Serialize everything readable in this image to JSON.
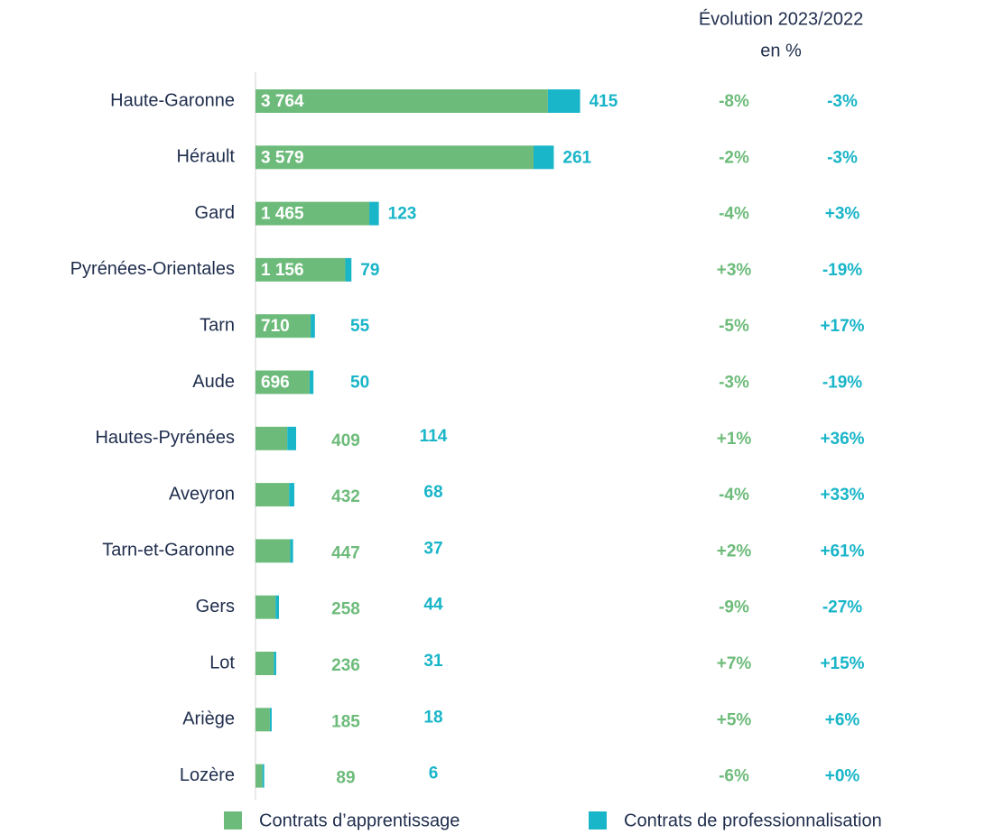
{
  "chart_data": {
    "type": "stacked-bar-horizontal",
    "categories": [
      "Haute-Garonne",
      "Hérault",
      "Gard",
      "Pyrénées-Orientales",
      "Tarn",
      "Aude",
      "Hautes-Pyrénées",
      "Aveyron",
      "Tarn-et-Garonne",
      "Gers",
      "Lot",
      "Ariège",
      "Lozère"
    ],
    "xlim": [
      0,
      4800
    ],
    "series": [
      {
        "name": "Contrats d’apprentissage",
        "color": "#6dbb7a",
        "values": [
          3764,
          3579,
          1465,
          1156,
          710,
          696,
          409,
          432,
          447,
          258,
          236,
          185,
          89
        ],
        "value_labels": [
          "3 764",
          "3 579",
          "1 465",
          "1 156",
          "710",
          "696",
          "409",
          "432",
          "447",
          "258",
          "236",
          "185",
          "89"
        ]
      },
      {
        "name": "Contrats de professionnalisation",
        "color": "#19b5c8",
        "values": [
          415,
          261,
          123,
          79,
          55,
          50,
          114,
          68,
          37,
          44,
          31,
          18,
          6
        ]
      }
    ],
    "evolution": {
      "title": "Évolution 2023/2022",
      "subtitle": "en %",
      "series": [
        {
          "color": "#6dbb7a",
          "values": [
            -8,
            -2,
            -4,
            3,
            -5,
            -3,
            1,
            -4,
            2,
            -9,
            7,
            5,
            -6
          ],
          "value_labels": [
            "-8%",
            "-2%",
            "-4%",
            "+3%",
            "-5%",
            "-3%",
            "+1%",
            "-4%",
            "+2%",
            "-9%",
            "+7%",
            "+5%",
            "-6%"
          ]
        },
        {
          "color": "#19b5c8",
          "values": [
            -3,
            -3,
            3,
            -19,
            17,
            -19,
            36,
            33,
            61,
            -27,
            15,
            6,
            0
          ],
          "value_labels": [
            "-3%",
            "-3%",
            "+3%",
            "-19%",
            "+17%",
            "-19%",
            "+36%",
            "+33%",
            "+61%",
            "-27%",
            "+15%",
            "+6%",
            "+0%"
          ]
        }
      ]
    }
  }
}
